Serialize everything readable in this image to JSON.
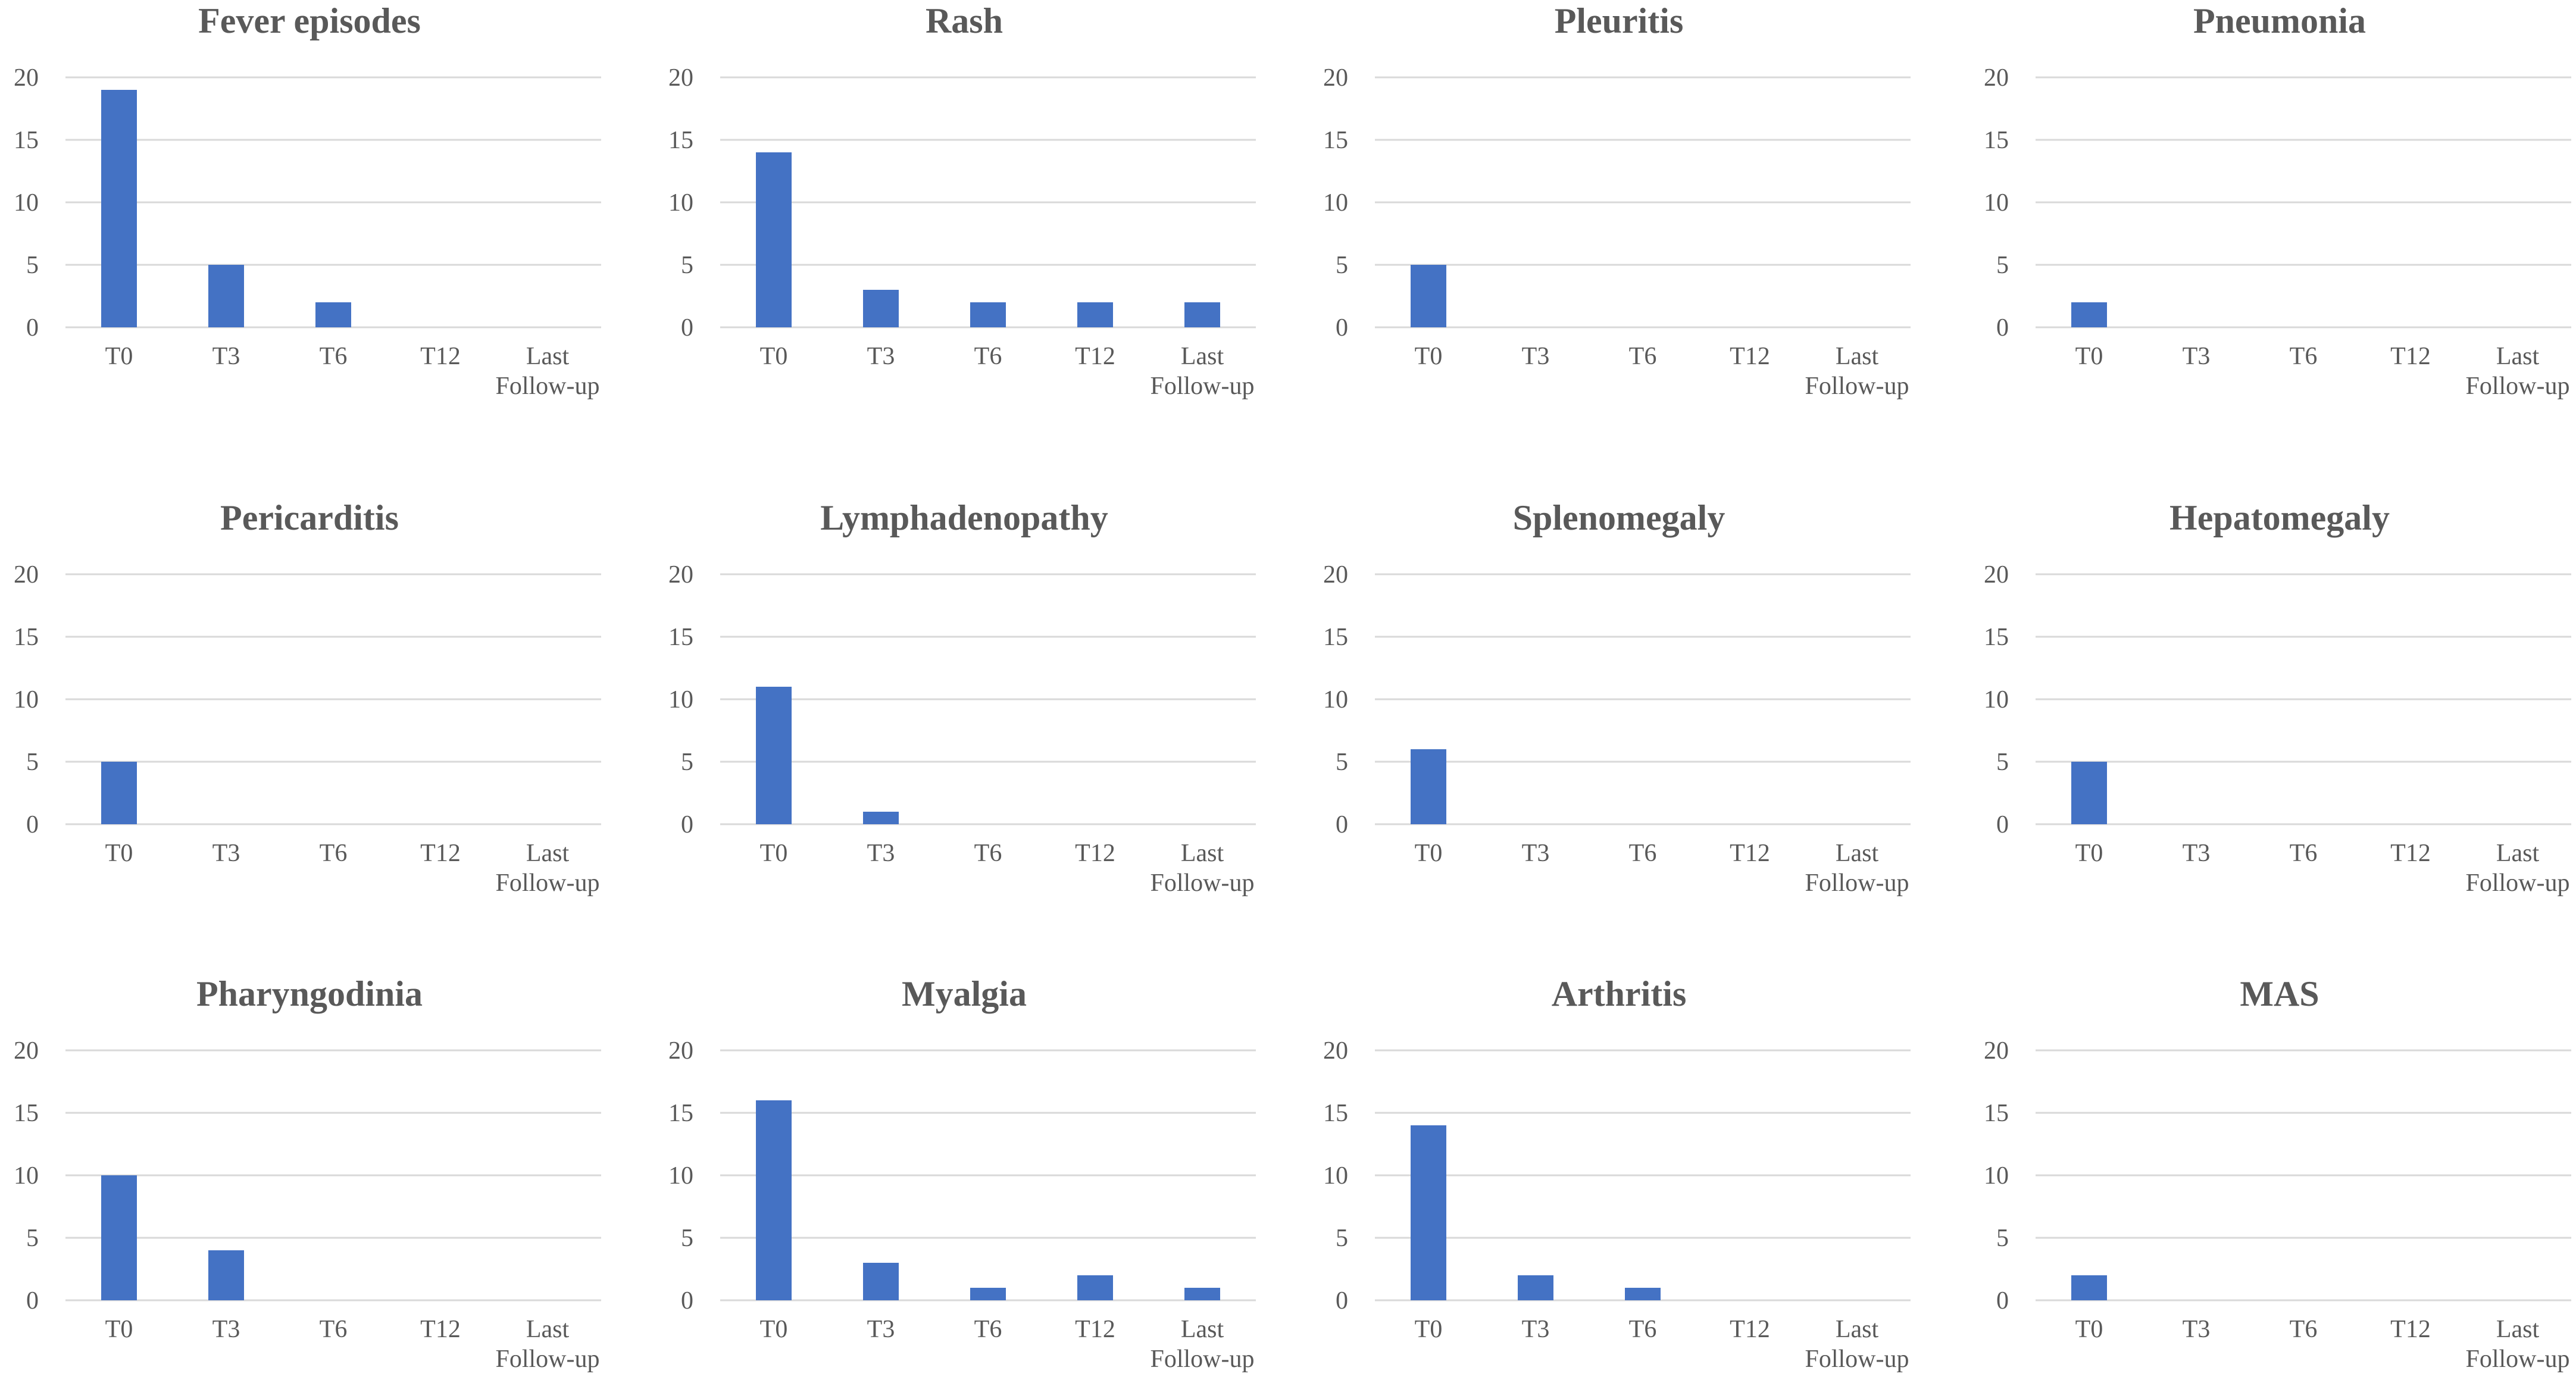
{
  "chart_data": [
    {
      "type": "bar",
      "title": "Fever episodes",
      "categories": [
        "T0",
        "T3",
        "T6",
        "T12",
        "Last Follow-up"
      ],
      "values": [
        19,
        5,
        2,
        0,
        0
      ],
      "ylim": [
        0,
        20
      ],
      "yticks": [
        0,
        5,
        10,
        15,
        20
      ],
      "xlabel": "",
      "ylabel": "",
      "grid": true,
      "color": "#4472C4"
    },
    {
      "type": "bar",
      "title": "Rash",
      "categories": [
        "T0",
        "T3",
        "T6",
        "T12",
        "Last Follow-up"
      ],
      "values": [
        14,
        3,
        2,
        2,
        2
      ],
      "ylim": [
        0,
        20
      ],
      "yticks": [
        0,
        5,
        10,
        15,
        20
      ],
      "xlabel": "",
      "ylabel": "",
      "grid": true,
      "color": "#4472C4"
    },
    {
      "type": "bar",
      "title": "Pleuritis",
      "categories": [
        "T0",
        "T3",
        "T6",
        "T12",
        "Last Follow-up"
      ],
      "values": [
        5,
        0,
        0,
        0,
        0
      ],
      "ylim": [
        0,
        20
      ],
      "yticks": [
        0,
        5,
        10,
        15,
        20
      ],
      "xlabel": "",
      "ylabel": "",
      "grid": true,
      "color": "#4472C4"
    },
    {
      "type": "bar",
      "title": "Pneumonia",
      "categories": [
        "T0",
        "T3",
        "T6",
        "T12",
        "Last Follow-up"
      ],
      "values": [
        2,
        0,
        0,
        0,
        0
      ],
      "ylim": [
        0,
        20
      ],
      "yticks": [
        0,
        5,
        10,
        15,
        20
      ],
      "xlabel": "",
      "ylabel": "",
      "grid": true,
      "color": "#4472C4"
    },
    {
      "type": "bar",
      "title": "Pericarditis",
      "categories": [
        "T0",
        "T3",
        "T6",
        "T12",
        "Last Follow-up"
      ],
      "values": [
        5,
        0,
        0,
        0,
        0
      ],
      "ylim": [
        0,
        20
      ],
      "yticks": [
        0,
        5,
        10,
        15,
        20
      ],
      "xlabel": "",
      "ylabel": "",
      "grid": true,
      "color": "#4472C4"
    },
    {
      "type": "bar",
      "title": "Lymphadenopathy",
      "categories": [
        "T0",
        "T3",
        "T6",
        "T12",
        "Last Follow-up"
      ],
      "values": [
        11,
        1,
        0,
        0,
        0
      ],
      "ylim": [
        0,
        20
      ],
      "yticks": [
        0,
        5,
        10,
        15,
        20
      ],
      "xlabel": "",
      "ylabel": "",
      "grid": true,
      "color": "#4472C4"
    },
    {
      "type": "bar",
      "title": "Splenomegaly",
      "categories": [
        "T0",
        "T3",
        "T6",
        "T12",
        "Last Follow-up"
      ],
      "values": [
        6,
        0,
        0,
        0,
        0
      ],
      "ylim": [
        0,
        20
      ],
      "yticks": [
        0,
        5,
        10,
        15,
        20
      ],
      "xlabel": "",
      "ylabel": "",
      "grid": true,
      "color": "#4472C4"
    },
    {
      "type": "bar",
      "title": "Hepatomegaly",
      "categories": [
        "T0",
        "T3",
        "T6",
        "T12",
        "Last Follow-up"
      ],
      "values": [
        5,
        0,
        0,
        0,
        0
      ],
      "ylim": [
        0,
        20
      ],
      "yticks": [
        0,
        5,
        10,
        15,
        20
      ],
      "xlabel": "",
      "ylabel": "",
      "grid": true,
      "color": "#4472C4"
    },
    {
      "type": "bar",
      "title": "Pharyngodinia",
      "categories": [
        "T0",
        "T3",
        "T6",
        "T12",
        "Last Follow-up"
      ],
      "values": [
        10,
        4,
        0,
        0,
        0
      ],
      "ylim": [
        0,
        20
      ],
      "yticks": [
        0,
        5,
        10,
        15,
        20
      ],
      "xlabel": "",
      "ylabel": "",
      "grid": true,
      "color": "#4472C4"
    },
    {
      "type": "bar",
      "title": "Myalgia",
      "categories": [
        "T0",
        "T3",
        "T6",
        "T12",
        "Last Follow-up"
      ],
      "values": [
        16,
        3,
        1,
        2,
        1
      ],
      "ylim": [
        0,
        20
      ],
      "yticks": [
        0,
        5,
        10,
        15,
        20
      ],
      "xlabel": "",
      "ylabel": "",
      "grid": true,
      "color": "#4472C4"
    },
    {
      "type": "bar",
      "title": "Arthritis",
      "categories": [
        "T0",
        "T3",
        "T6",
        "T12",
        "Last Follow-up"
      ],
      "values": [
        14,
        2,
        1,
        0,
        0
      ],
      "ylim": [
        0,
        20
      ],
      "yticks": [
        0,
        5,
        10,
        15,
        20
      ],
      "xlabel": "",
      "ylabel": "",
      "grid": true,
      "color": "#4472C4"
    },
    {
      "type": "bar",
      "title": "MAS",
      "categories": [
        "T0",
        "T3",
        "T6",
        "T12",
        "Last Follow-up"
      ],
      "values": [
        2,
        0,
        0,
        0,
        0
      ],
      "ylim": [
        0,
        20
      ],
      "yticks": [
        0,
        5,
        10,
        15,
        20
      ],
      "xlabel": "",
      "ylabel": "",
      "grid": true,
      "color": "#4472C4"
    }
  ]
}
